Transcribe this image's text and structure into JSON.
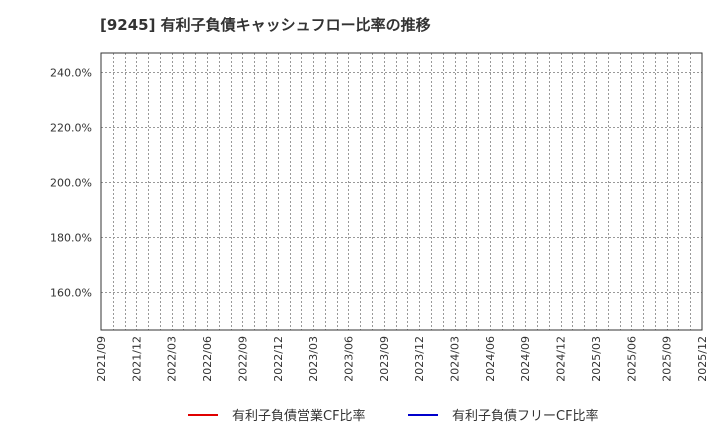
{
  "header": {
    "title": "[9245]  有利子負債キャッシュフロー比率の推移"
  },
  "legend": {
    "items": [
      {
        "label": "有利子負債営業CF比率",
        "color": "#e00000"
      },
      {
        "label": "有利子負債フリーCF比率",
        "color": "#0000cc"
      }
    ]
  },
  "chart_data": {
    "type": "line",
    "title": "[9245]  有利子負債キャッシュフロー比率の推移",
    "xlabel": "",
    "ylabel": "",
    "x": [
      "2021/09",
      "2021/12",
      "2022/03",
      "2022/06",
      "2022/09",
      "2022/12",
      "2023/03",
      "2023/06",
      "2023/09",
      "2023/12",
      "2024/03",
      "2024/06",
      "2024/09",
      "2024/12",
      "2025/03",
      "2025/06",
      "2025/09",
      "2025/12"
    ],
    "y_ticks": [
      "160.0%",
      "180.0%",
      "200.0%",
      "220.0%",
      "240.0%"
    ],
    "ylim": [
      146.2,
      246.9
    ],
    "grid": true,
    "legend_position": "bottom",
    "series": [
      {
        "name": "有利子負債営業CF比率",
        "color": "#e00000",
        "values": []
      },
      {
        "name": "有利子負債フリーCF比率",
        "color": "#0000cc",
        "values": []
      }
    ]
  }
}
